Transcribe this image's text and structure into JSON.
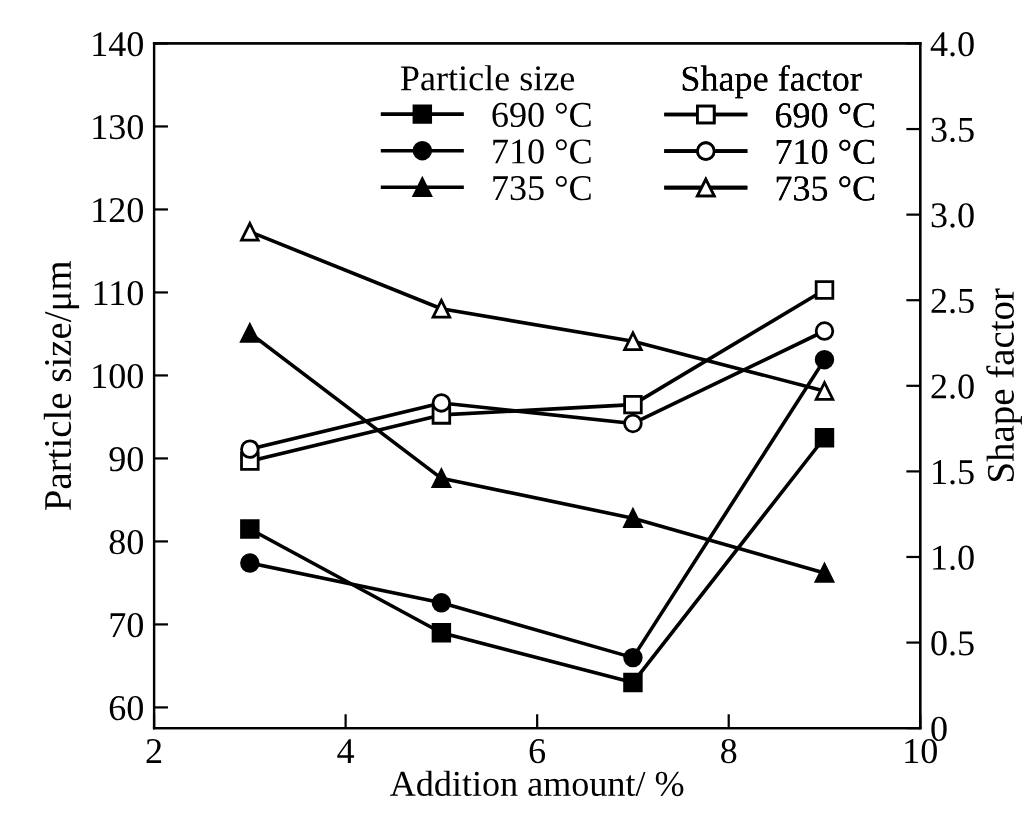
{
  "chart_data": {
    "type": "line",
    "xlabel": "Addition amount/ %",
    "ylabel": "Particle size/μm",
    "y2label": "Shape factor",
    "x": [
      3,
      5,
      7,
      9
    ],
    "series": [
      {
        "name": "690 °C",
        "color": "#000000",
        "marker": "square",
        "values": [
          81.5,
          69,
          63,
          92.5
        ]
      },
      {
        "name": "710 °C",
        "color": "#000000",
        "marker": "circle",
        "values": [
          77.4,
          72.6,
          66,
          101.9
        ]
      },
      {
        "name": "735 °C",
        "color": "#000000",
        "marker": "triangle",
        "values": [
          105.1,
          87.6,
          82.8,
          76.2
        ]
      },
      {
        "name": "690 °C",
        "color": "#000000",
        "marker": "square",
        "axis": "y2",
        "values": [
          1.56,
          1.83,
          1.89,
          2.56
        ]
      },
      {
        "name": "710 °C",
        "color": "#000000",
        "marker": "circle",
        "axis": "y2",
        "values": [
          1.63,
          1.9,
          1.78,
          2.32
        ]
      },
      {
        "name": "735 °C",
        "color": "#000000",
        "marker": "triangle",
        "axis": "y2",
        "values": [
          2.9,
          2.45,
          2.26,
          1.97
        ]
      }
    ],
    "legend_title": [
      "Particle size",
      "Shape factor"
    ],
    "legend": "top right",
    "grid": false,
    "line_style": "solid",
    "xlim": [
      2,
      10
    ],
    "xticks": [
      2,
      4,
      6,
      8,
      10
    ],
    "ylim": [
      57.5,
      140
    ],
    "yticks": [
      60,
      70,
      80,
      90,
      100,
      110,
      120,
      130,
      140
    ],
    "y2lim": [
      0,
      4
    ],
    "y2ticks": [
      0,
      0.5,
      {
        "value": 1,
        "label": "1.0"
      },
      1.5,
      {
        "value": 2,
        "label": "2.0"
      },
      2.5,
      {
        "value": 3,
        "label": "3.0"
      },
      3.5,
      {
        "value": 4,
        "label": "4.0"
      }
    ]
  }
}
